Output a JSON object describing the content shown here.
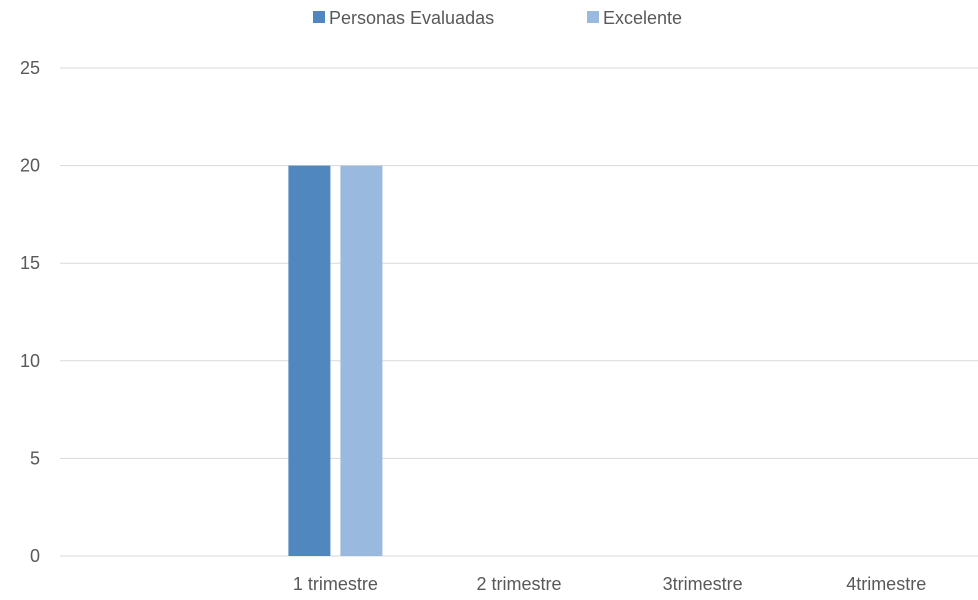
{
  "chart_data": {
    "type": "bar",
    "categories": [
      "",
      "1 trimestre",
      "2 trimestre",
      "3trimestre",
      "4trimestre"
    ],
    "series": [
      {
        "name": "Personas Evaluadas",
        "values": [
          null,
          20,
          null,
          null,
          null
        ],
        "color": "#4f87be"
      },
      {
        "name": "Excelente",
        "values": [
          null,
          20,
          null,
          null,
          null
        ],
        "color": "#99b9df"
      }
    ],
    "ylim": [
      0,
      25
    ],
    "yticks": [
      0,
      5,
      10,
      15,
      20,
      25
    ],
    "grid": true,
    "legend_position": "top-center",
    "title": "",
    "xlabel": "",
    "ylabel": ""
  }
}
